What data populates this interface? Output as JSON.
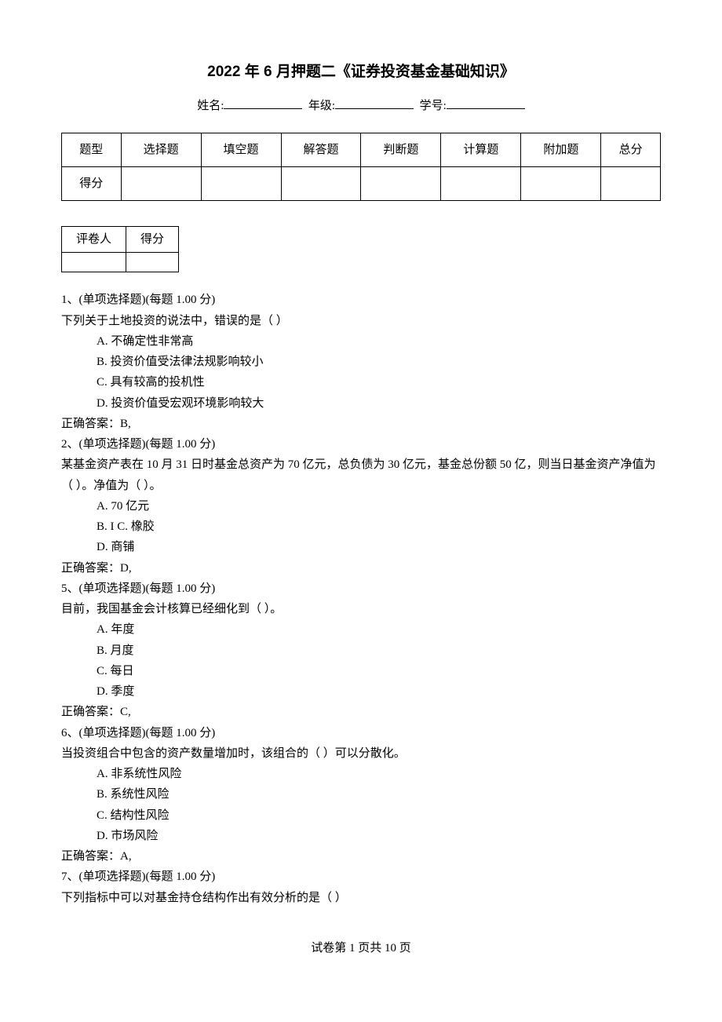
{
  "title": "2022 年 6 月押题二《证券投资基金基础知识》",
  "info": {
    "name_label": "姓名:",
    "grade_label": "年级:",
    "id_label": "学号:"
  },
  "score_table": {
    "headers": [
      "题型",
      "选择题",
      "填空题",
      "解答题",
      "判断题",
      "计算题",
      "附加题",
      "总分"
    ],
    "row_label": "得分"
  },
  "grader_table": {
    "headers": [
      "评卷人",
      "得分"
    ]
  },
  "questions": [
    {
      "num": "1、",
      "type": "(单项选择题)(每题 1.00 分)",
      "stem": "下列关于土地投资的说法中，错误的是（   ）",
      "options": [
        "A. 不确定性非常高",
        "B. 投资价值受法律法规影响较小",
        "C. 具有较高的投机性",
        "D. 投资价值受宏观环境影响较大"
      ],
      "answer": "正确答案：B,"
    },
    {
      "num": "2、",
      "type": "(单项选择题)(每题 1.00 分)",
      "stem": "某基金资产表在 10 月 31 日时基金总资产为 70 亿元，总负债为 30 亿元，基金总份额 50 亿，则当日基金资产净值为（   ）。净值为（   ）。",
      "options": [
        "A. 70 亿元",
        "B. I    C. 橡胶",
        "D. 商铺"
      ],
      "answer": "正确答案：D,"
    },
    {
      "num": "5、",
      "type": "(单项选择题)(每题 1.00 分)",
      "stem": "目前，我国基金会计核算已经细化到（   ）。",
      "options": [
        "A. 年度",
        "B. 月度",
        "C. 每日",
        "D. 季度"
      ],
      "answer": "正确答案：C,"
    },
    {
      "num": "6、",
      "type": "(单项选择题)(每题 1.00 分)",
      "stem": "当投资组合中包含的资产数量增加时，该组合的（   ）可以分散化。",
      "options": [
        "A. 非系统性风险",
        "B. 系统性风险",
        "C. 结构性风险",
        "D. 市场风险"
      ],
      "answer": "正确答案：A,"
    },
    {
      "num": "7、",
      "type": "(单项选择题)(每题 1.00 分)",
      "stem": "下列指标中可以对基金持仓结构作出有效分析的是（   ）",
      "options": [],
      "answer": ""
    }
  ],
  "footer": "试卷第 1 页共 10 页"
}
